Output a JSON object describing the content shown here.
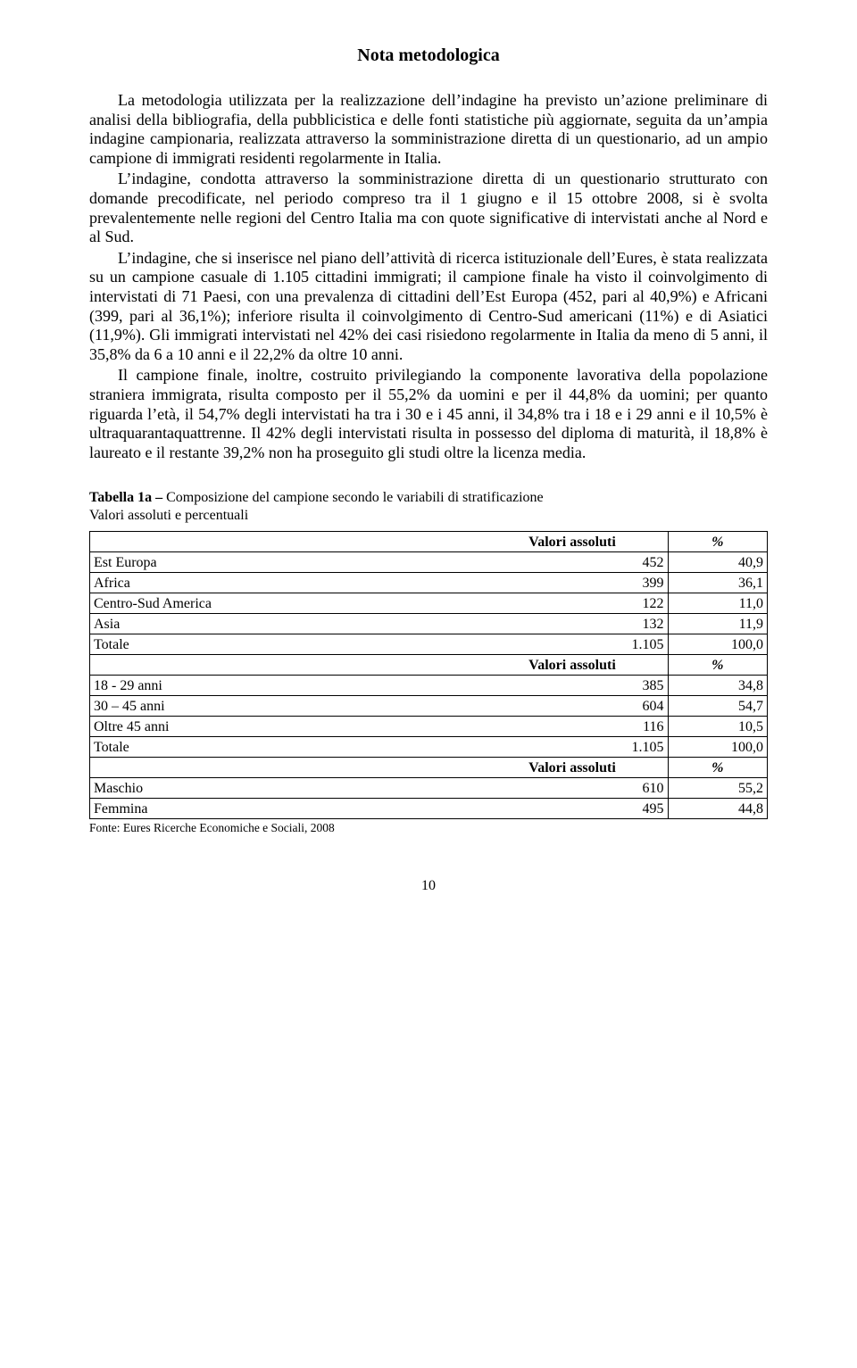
{
  "title": "Nota metodologica",
  "paragraphs": [
    "La metodologia utilizzata per la realizzazione dell’indagine ha previsto un’azione preliminare di analisi della bibliografia, della pubblicistica e delle fonti statistiche più aggiornate, seguita da un’ampia indagine campionaria, realizzata attraverso la somministrazione diretta di un questionario, ad un ampio campione di immigrati residenti regolarmente in Italia.",
    "L’indagine, condotta attraverso la somministrazione diretta di un questionario strutturato con domande precodificate, nel periodo compreso tra il 1 giugno e il 15 ottobre 2008, si è svolta prevalentemente nelle regioni del Centro Italia ma con quote significative di intervistati anche al Nord e al Sud.",
    "L’indagine, che si inserisce nel piano dell’attività di ricerca istituzionale dell’Eures, è stata realizzata su un campione casuale di 1.105 cittadini immigrati;  il campione finale ha visto il coinvolgimento di intervistati di 71 Paesi, con una prevalenza di cittadini dell’Est Europa (452, pari al 40,9%) e Africani (399, pari al 36,1%); inferiore risulta il coinvolgimento di Centro-Sud americani (11%) e di Asiatici (11,9%). Gli immigrati intervistati nel 42% dei casi risiedono regolarmente in Italia da meno di 5 anni, il 35,8% da 6 a 10 anni e il 22,2% da oltre 10 anni.",
    "Il campione finale, inoltre, costruito privilegiando la componente lavorativa della popolazione straniera immigrata, risulta composto per il 55,2% da uomini e per il 44,8% da uomini; per quanto riguarda l’età, il 54,7% degli intervistati ha tra i 30 e i 45 anni, il 34,8% tra i 18 e i 29 anni e il 10,5% è ultraquarantaquattrenne. Il 42% degli intervistati risulta in possesso del diploma di maturità, il 18,8% è laureato e il restante 39,2% non ha proseguito gli studi oltre la licenza media."
  ],
  "table": {
    "title_prefix": "Tabella 1a – ",
    "title_rest": "Composizione del campione secondo le variabili di stratificazione",
    "subtitle": "Valori assoluti e percentuali",
    "header_abs": "Valori assoluti",
    "header_pct": "%",
    "sections": [
      {
        "rows": [
          {
            "label": "Est Europa",
            "abs": "452",
            "pct": "40,9"
          },
          {
            "label": "Africa",
            "abs": "399",
            "pct": "36,1"
          },
          {
            "label": "Centro-Sud America",
            "abs": "122",
            "pct": "11,0"
          },
          {
            "label": "Asia",
            "abs": "132",
            "pct": "11,9"
          },
          {
            "label": "Totale",
            "abs": "1.105",
            "pct": "100,0"
          }
        ]
      },
      {
        "rows": [
          {
            "label": "18 - 29 anni",
            "abs": "385",
            "pct": "34,8"
          },
          {
            "label": "30 – 45 anni",
            "abs": "604",
            "pct": "54,7"
          },
          {
            "label": "Oltre 45 anni",
            "abs": "116",
            "pct": "10,5"
          },
          {
            "label": "Totale",
            "abs": "1.105",
            "pct": "100,0"
          }
        ]
      },
      {
        "rows": [
          {
            "label": "Maschio",
            "abs": "610",
            "pct": "55,2"
          },
          {
            "label": "Femmina",
            "abs": "495",
            "pct": "44,8"
          }
        ]
      }
    ],
    "source": "Fonte: Eures Ricerche Economiche e Sociali, 2008"
  },
  "page_number": "10"
}
